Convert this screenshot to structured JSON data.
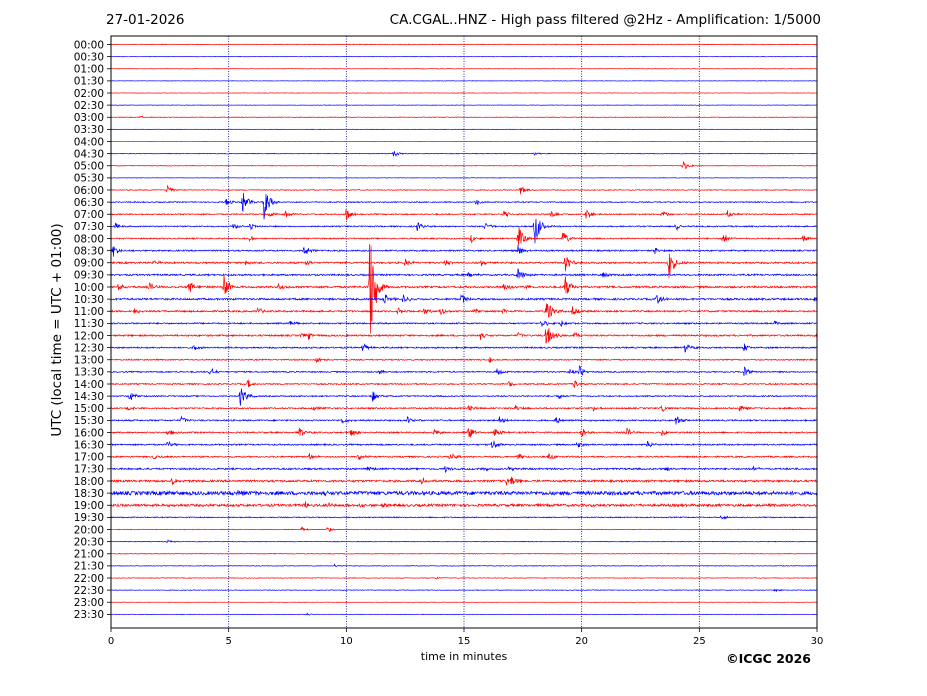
{
  "header": {
    "date": "27-01-2026",
    "title": "CA.CGAL..HNZ - High pass filtered @2Hz - Amplification: 1/5000"
  },
  "copyright": "©ICGC 2026",
  "colors": {
    "red": "#ff0000",
    "blue": "#0000ff",
    "grid": "#000080",
    "axis": "#000000"
  },
  "chart_data": {
    "type": "line",
    "title": "CA.CGAL..HNZ - High pass filtered @2Hz - Amplification: 1/5000",
    "xlabel": "time in minutes",
    "ylabel": "UTC (local time = UTC + 01:00)",
    "xlim": [
      0,
      30
    ],
    "x_ticks": [
      0,
      5,
      10,
      15,
      20,
      25,
      30
    ],
    "vertical_grid": [
      5,
      10,
      15,
      20,
      25
    ],
    "y_ticks": [
      "00:00",
      "00:30",
      "01:00",
      "01:30",
      "02:00",
      "02:30",
      "03:00",
      "03:30",
      "04:00",
      "04:30",
      "05:00",
      "05:30",
      "06:00",
      "06:30",
      "07:00",
      "07:30",
      "08:00",
      "08:30",
      "09:00",
      "09:30",
      "10:00",
      "10:30",
      "11:00",
      "11:30",
      "12:00",
      "12:30",
      "13:00",
      "13:30",
      "14:00",
      "14:30",
      "15:00",
      "15:30",
      "16:00",
      "16:30",
      "17:00",
      "17:30",
      "18:00",
      "18:30",
      "19:00",
      "19:30",
      "20:00",
      "20:30",
      "21:00",
      "21:30",
      "22:00",
      "22:30",
      "23:00",
      "23:30"
    ],
    "trace_colors": [
      "red",
      "blue"
    ],
    "trace_noise": [
      0.3,
      0.2,
      0.2,
      0.2,
      0.2,
      0.2,
      0.3,
      0.2,
      0.2,
      0.3,
      0.3,
      0.2,
      0.4,
      0.5,
      0.6,
      0.6,
      0.6,
      0.7,
      0.8,
      0.8,
      0.9,
      0.9,
      0.8,
      0.7,
      0.8,
      0.7,
      0.6,
      0.6,
      0.6,
      0.6,
      0.7,
      0.7,
      0.7,
      0.7,
      0.7,
      0.8,
      1.0,
      1.8,
      1.2,
      0.5,
      0.3,
      0.3,
      0.3,
      0.3,
      0.3,
      0.3,
      0.2,
      0.2
    ],
    "events": [
      {
        "row": "03:00",
        "t": 1.2,
        "amp": 1.5
      },
      {
        "row": "04:30",
        "t": 12.0,
        "amp": 4
      },
      {
        "row": "04:30",
        "t": 18.0,
        "amp": 1.5
      },
      {
        "row": "05:00",
        "t": 24.3,
        "amp": 5
      },
      {
        "row": "06:00",
        "t": 2.4,
        "amp": 5
      },
      {
        "row": "06:00",
        "t": 17.4,
        "amp": 5
      },
      {
        "row": "06:30",
        "t": 4.9,
        "amp": 4
      },
      {
        "row": "06:30",
        "t": 5.6,
        "amp": 12
      },
      {
        "row": "06:30",
        "t": 6.5,
        "amp": 18
      },
      {
        "row": "06:30",
        "t": 15.5,
        "amp": 4
      },
      {
        "row": "07:00",
        "t": 6.7,
        "amp": 4
      },
      {
        "row": "07:00",
        "t": 7.4,
        "amp": 5
      },
      {
        "row": "07:00",
        "t": 10.0,
        "amp": 7
      },
      {
        "row": "07:00",
        "t": 16.7,
        "amp": 4
      },
      {
        "row": "07:00",
        "t": 18.7,
        "amp": 4
      },
      {
        "row": "07:00",
        "t": 20.2,
        "amp": 6
      },
      {
        "row": "07:00",
        "t": 23.4,
        "amp": 4
      },
      {
        "row": "07:00",
        "t": 26.2,
        "amp": 4
      },
      {
        "row": "07:30",
        "t": 0.2,
        "amp": 4
      },
      {
        "row": "07:30",
        "t": 5.2,
        "amp": 4
      },
      {
        "row": "07:30",
        "t": 5.9,
        "amp": 4
      },
      {
        "row": "07:30",
        "t": 13.0,
        "amp": 5
      },
      {
        "row": "07:30",
        "t": 15.9,
        "amp": 5
      },
      {
        "row": "07:30",
        "t": 18.0,
        "amp": 20
      },
      {
        "row": "07:30",
        "t": 24.0,
        "amp": 5
      },
      {
        "row": "08:00",
        "t": 5.9,
        "amp": 3
      },
      {
        "row": "08:00",
        "t": 15.3,
        "amp": 4
      },
      {
        "row": "08:00",
        "t": 17.3,
        "amp": 14
      },
      {
        "row": "08:00",
        "t": 19.2,
        "amp": 8
      },
      {
        "row": "08:00",
        "t": 26.0,
        "amp": 6
      },
      {
        "row": "08:00",
        "t": 29.4,
        "amp": 4
      },
      {
        "row": "08:30",
        "t": 0.1,
        "amp": 6
      },
      {
        "row": "08:30",
        "t": 8.2,
        "amp": 7
      },
      {
        "row": "08:30",
        "t": 17.3,
        "amp": 6
      },
      {
        "row": "08:30",
        "t": 23.1,
        "amp": 4
      },
      {
        "row": "09:00",
        "t": 1.8,
        "amp": 4
      },
      {
        "row": "09:00",
        "t": 5.7,
        "amp": 3
      },
      {
        "row": "09:00",
        "t": 8.3,
        "amp": 3
      },
      {
        "row": "09:00",
        "t": 12.5,
        "amp": 4
      },
      {
        "row": "09:00",
        "t": 14.2,
        "amp": 4
      },
      {
        "row": "09:00",
        "t": 15.7,
        "amp": 4
      },
      {
        "row": "09:00",
        "t": 19.3,
        "amp": 10
      },
      {
        "row": "09:00",
        "t": 23.7,
        "amp": 18
      },
      {
        "row": "09:30",
        "t": 15.2,
        "amp": 4
      },
      {
        "row": "09:30",
        "t": 17.3,
        "amp": 8
      },
      {
        "row": "09:30",
        "t": 20.9,
        "amp": 3
      },
      {
        "row": "10:00",
        "t": 0.3,
        "amp": 4
      },
      {
        "row": "10:00",
        "t": 1.6,
        "amp": 5
      },
      {
        "row": "10:00",
        "t": 3.3,
        "amp": 9
      },
      {
        "row": "10:00",
        "t": 4.8,
        "amp": 14
      },
      {
        "row": "10:00",
        "t": 7.1,
        "amp": 5
      },
      {
        "row": "10:00",
        "t": 11.0,
        "amp": 70
      },
      {
        "row": "10:00",
        "t": 16.7,
        "amp": 5
      },
      {
        "row": "10:00",
        "t": 17.6,
        "amp": 4
      },
      {
        "row": "10:00",
        "t": 19.3,
        "amp": 12
      },
      {
        "row": "10:30",
        "t": 11.6,
        "amp": 7
      },
      {
        "row": "10:30",
        "t": 12.4,
        "amp": 6
      },
      {
        "row": "10:30",
        "t": 14.9,
        "amp": 6
      },
      {
        "row": "10:30",
        "t": 23.2,
        "amp": 6
      },
      {
        "row": "10:30",
        "t": 29.9,
        "amp": 5
      },
      {
        "row": "11:00",
        "t": 1.0,
        "amp": 4
      },
      {
        "row": "11:00",
        "t": 6.2,
        "amp": 4
      },
      {
        "row": "11:00",
        "t": 12.2,
        "amp": 4
      },
      {
        "row": "11:00",
        "t": 13.3,
        "amp": 4
      },
      {
        "row": "11:00",
        "t": 14.0,
        "amp": 4
      },
      {
        "row": "11:00",
        "t": 15.4,
        "amp": 4
      },
      {
        "row": "11:00",
        "t": 16.6,
        "amp": 4
      },
      {
        "row": "11:00",
        "t": 18.5,
        "amp": 16
      },
      {
        "row": "11:00",
        "t": 19.6,
        "amp": 5
      },
      {
        "row": "11:30",
        "t": 7.6,
        "amp": 3
      },
      {
        "row": "11:30",
        "t": 18.3,
        "amp": 5
      },
      {
        "row": "11:30",
        "t": 19.1,
        "amp": 5
      },
      {
        "row": "11:30",
        "t": 28.2,
        "amp": 3
      },
      {
        "row": "12:00",
        "t": 8.1,
        "amp": 4
      },
      {
        "row": "12:00",
        "t": 8.4,
        "amp": 4
      },
      {
        "row": "12:00",
        "t": 15.7,
        "amp": 4
      },
      {
        "row": "12:00",
        "t": 17.3,
        "amp": 3
      },
      {
        "row": "12:00",
        "t": 18.5,
        "amp": 14
      },
      {
        "row": "12:00",
        "t": 19.7,
        "amp": 3
      },
      {
        "row": "12:00",
        "t": 30.0,
        "amp": 4
      },
      {
        "row": "12:30",
        "t": 3.5,
        "amp": 3
      },
      {
        "row": "12:30",
        "t": 10.7,
        "amp": 5
      },
      {
        "row": "12:30",
        "t": 24.4,
        "amp": 5
      },
      {
        "row": "12:30",
        "t": 26.9,
        "amp": 4
      },
      {
        "row": "13:00",
        "t": 8.7,
        "amp": 4
      },
      {
        "row": "13:00",
        "t": 16.1,
        "amp": 4
      },
      {
        "row": "13:30",
        "t": 4.2,
        "amp": 5
      },
      {
        "row": "13:30",
        "t": 11.4,
        "amp": 3
      },
      {
        "row": "13:30",
        "t": 16.4,
        "amp": 4
      },
      {
        "row": "13:30",
        "t": 19.5,
        "amp": 4
      },
      {
        "row": "13:30",
        "t": 19.9,
        "amp": 6
      },
      {
        "row": "13:30",
        "t": 26.9,
        "amp": 6
      },
      {
        "row": "14:00",
        "t": 5.8,
        "amp": 5
      },
      {
        "row": "14:00",
        "t": 16.9,
        "amp": 4
      },
      {
        "row": "14:00",
        "t": 19.7,
        "amp": 5
      },
      {
        "row": "14:30",
        "t": 0.8,
        "amp": 6
      },
      {
        "row": "14:30",
        "t": 5.5,
        "amp": 12
      },
      {
        "row": "14:30",
        "t": 11.1,
        "amp": 6
      },
      {
        "row": "14:30",
        "t": 19.0,
        "amp": 4
      },
      {
        "row": "15:00",
        "t": 0.7,
        "amp": 3
      },
      {
        "row": "15:00",
        "t": 8.6,
        "amp": 3
      },
      {
        "row": "15:00",
        "t": 15.2,
        "amp": 4
      },
      {
        "row": "15:00",
        "t": 17.2,
        "amp": 4
      },
      {
        "row": "15:00",
        "t": 20.5,
        "amp": 3
      },
      {
        "row": "15:00",
        "t": 23.4,
        "amp": 4
      },
      {
        "row": "15:00",
        "t": 26.7,
        "amp": 4
      },
      {
        "row": "15:30",
        "t": 3.0,
        "amp": 4
      },
      {
        "row": "15:30",
        "t": 9.8,
        "amp": 4
      },
      {
        "row": "15:30",
        "t": 12.6,
        "amp": 4
      },
      {
        "row": "15:30",
        "t": 16.5,
        "amp": 4
      },
      {
        "row": "15:30",
        "t": 18.9,
        "amp": 4
      },
      {
        "row": "15:30",
        "t": 24.0,
        "amp": 5
      },
      {
        "row": "16:00",
        "t": 2.4,
        "amp": 4
      },
      {
        "row": "16:00",
        "t": 8.0,
        "amp": 5
      },
      {
        "row": "16:00",
        "t": 10.2,
        "amp": 5
      },
      {
        "row": "16:00",
        "t": 13.7,
        "amp": 4
      },
      {
        "row": "16:00",
        "t": 15.2,
        "amp": 7
      },
      {
        "row": "16:00",
        "t": 16.3,
        "amp": 5
      },
      {
        "row": "16:00",
        "t": 20.0,
        "amp": 6
      },
      {
        "row": "16:00",
        "t": 21.9,
        "amp": 5
      },
      {
        "row": "16:00",
        "t": 23.4,
        "amp": 4
      },
      {
        "row": "16:30",
        "t": 2.4,
        "amp": 4
      },
      {
        "row": "16:30",
        "t": 16.2,
        "amp": 6
      },
      {
        "row": "16:30",
        "t": 19.8,
        "amp": 4
      },
      {
        "row": "16:30",
        "t": 22.8,
        "amp": 4
      },
      {
        "row": "17:00",
        "t": 1.8,
        "amp": 4
      },
      {
        "row": "17:00",
        "t": 8.4,
        "amp": 4
      },
      {
        "row": "17:00",
        "t": 10.5,
        "amp": 4
      },
      {
        "row": "17:00",
        "t": 14.4,
        "amp": 4
      },
      {
        "row": "17:00",
        "t": 17.3,
        "amp": 5
      },
      {
        "row": "17:00",
        "t": 18.6,
        "amp": 4
      },
      {
        "row": "17:30",
        "t": 10.9,
        "amp": 3
      },
      {
        "row": "17:30",
        "t": 14.2,
        "amp": 3
      },
      {
        "row": "17:30",
        "t": 15.8,
        "amp": 3
      },
      {
        "row": "17:30",
        "t": 16.9,
        "amp": 3
      },
      {
        "row": "17:30",
        "t": 23.6,
        "amp": 3
      },
      {
        "row": "17:30",
        "t": 27.3,
        "amp": 3
      },
      {
        "row": "18:00",
        "t": 2.6,
        "amp": 4
      },
      {
        "row": "18:00",
        "t": 13.2,
        "amp": 4
      },
      {
        "row": "18:00",
        "t": 16.8,
        "amp": 4
      },
      {
        "row": "18:00",
        "t": 17.0,
        "amp": 7
      },
      {
        "row": "18:30",
        "t": 2.2,
        "amp": 3
      },
      {
        "row": "18:30",
        "t": 5.4,
        "amp": 3
      },
      {
        "row": "18:30",
        "t": 9.0,
        "amp": 3
      },
      {
        "row": "19:00",
        "t": 8.2,
        "amp": 5
      },
      {
        "row": "19:00",
        "t": 9.2,
        "amp": 3
      },
      {
        "row": "19:00",
        "t": 10.6,
        "amp": 3
      },
      {
        "row": "19:00",
        "t": 11.5,
        "amp": 3
      },
      {
        "row": "19:30",
        "t": 25.9,
        "amp": 3
      },
      {
        "row": "20:00",
        "t": 8.1,
        "amp": 3
      },
      {
        "row": "20:00",
        "t": 9.2,
        "amp": 3
      },
      {
        "row": "20:30",
        "t": 2.4,
        "amp": 1.5
      },
      {
        "row": "21:30",
        "t": 9.5,
        "amp": 1.5
      },
      {
        "row": "22:00",
        "t": 13.8,
        "amp": 1.5
      },
      {
        "row": "22:30",
        "t": 28.2,
        "amp": 1.5
      },
      {
        "row": "23:30",
        "t": 8.3,
        "amp": 1.5
      }
    ]
  }
}
